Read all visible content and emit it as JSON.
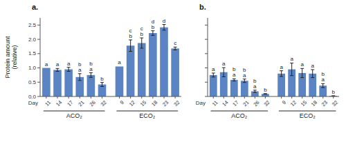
{
  "chart_data": [
    {
      "type": "bar",
      "title": "a.",
      "y_label": "Protein amount\n(relative)",
      "x_label": "Day",
      "color": "#5b84c4",
      "groups": [
        {
          "name": "ACO₂",
          "categories": [
            "11",
            "14",
            "17",
            "21",
            "26",
            "32"
          ],
          "values": [
            1.0,
            0.93,
            0.95,
            0.68,
            0.75,
            0.42
          ],
          "errors": [
            0.0,
            0.05,
            0.07,
            0.12,
            0.08,
            0.07
          ],
          "letters": [
            [
              "a"
            ],
            [
              "a"
            ],
            [
              "a"
            ],
            [
              "b",
              "a"
            ],
            [
              "b",
              "a"
            ],
            [
              "b"
            ]
          ]
        },
        {
          "name": "ECO₂",
          "categories": [
            "9",
            "12",
            "15",
            "18",
            "23",
            "32"
          ],
          "values": [
            1.05,
            1.78,
            1.87,
            2.22,
            2.42,
            1.68
          ],
          "errors": [
            0.0,
            0.2,
            0.18,
            0.08,
            0.1,
            0.05
          ],
          "letters": [
            [
              "a"
            ],
            [
              "c",
              "b"
            ],
            [
              "c",
              "b"
            ],
            [
              "d",
              "b"
            ],
            [
              "d"
            ],
            [
              "c"
            ]
          ]
        }
      ],
      "ylim": [
        0,
        2.75
      ],
      "yticks": [
        {
          "value": 0,
          "label": "0.0"
        },
        0.5,
        {
          "value": 1,
          "label": "1.0"
        },
        1.5,
        {
          "value": 2,
          "label": "2.0"
        },
        2.5
      ]
    },
    {
      "type": "bar",
      "title": "b.",
      "x_label": "Day",
      "color": "#5b84c4",
      "tick_labels": "x",
      "groups": [
        {
          "name": "ACO₂",
          "categories": [
            "11",
            "14",
            "17",
            "21",
            "26",
            "32"
          ],
          "values": [
            0.75,
            0.85,
            0.58,
            0.55,
            0.18,
            0.09
          ],
          "errors": [
            0.07,
            0.16,
            0.04,
            0.06,
            0.04,
            0.01
          ],
          "letters": [
            [
              "a"
            ],
            [
              "a"
            ],
            [
              "b",
              "a"
            ],
            [
              "b",
              "a"
            ],
            [
              "b",
              "a"
            ],
            [
              "b"
            ]
          ]
        },
        {
          "name": "ECO₂",
          "categories": [
            "9",
            "12",
            "15",
            "18",
            "23",
            "32"
          ],
          "values": [
            0.8,
            0.95,
            0.82,
            0.8,
            0.38,
            0.02
          ],
          "errors": [
            0.1,
            0.22,
            0.16,
            0.14,
            0.07,
            0.005
          ],
          "letters": [
            [
              "a"
            ],
            [
              "a"
            ],
            [
              "a"
            ],
            [
              "a"
            ],
            [
              "b",
              "a"
            ],
            [
              "b"
            ]
          ]
        }
      ],
      "ylim": [
        0,
        2.75
      ],
      "yticks": [
        0,
        0.5,
        1,
        1.5,
        2,
        2.5
      ]
    }
  ]
}
